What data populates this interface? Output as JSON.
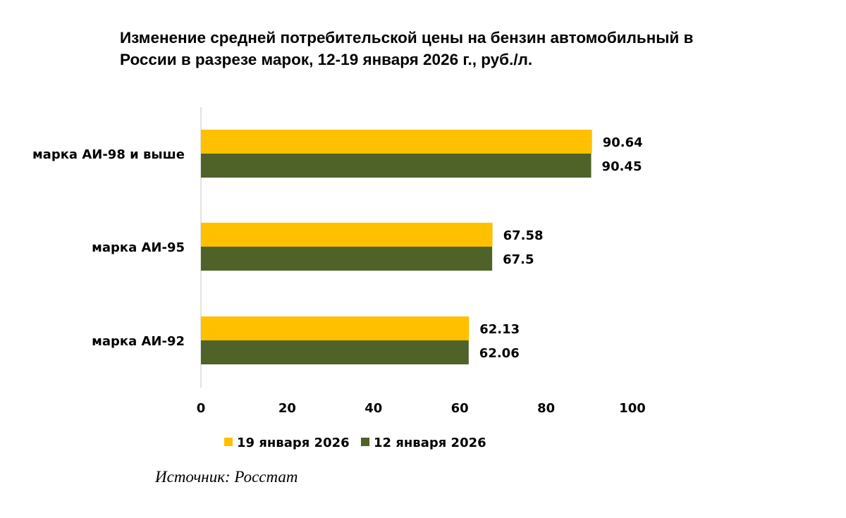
{
  "chart_data": {
    "type": "bar",
    "orientation": "horizontal",
    "title_lines": [
      "Изменение средней потребительской цены на бензин автомобильный в",
      "России в разрезе марок, 12-19 января 2026 г., руб./л."
    ],
    "categories": [
      "марка АИ-98 и выше",
      "марка АИ-95",
      "марка АИ-92"
    ],
    "series": [
      {
        "name": "19 января 2026",
        "color": "#FFC000",
        "values": [
          90.64,
          67.58,
          62.13
        ],
        "labels": [
          "90.64",
          "67.58",
          "62.13"
        ]
      },
      {
        "name": "12 января 2026",
        "color": "#4F6228",
        "values": [
          90.45,
          67.5,
          62.06
        ],
        "labels": [
          "90.45",
          "67.5",
          "62.06"
        ]
      }
    ],
    "xlim": [
      0,
      100
    ],
    "xticks": [
      0,
      20,
      40,
      60,
      80,
      100
    ],
    "xtick_labels": [
      "0",
      "20",
      "40",
      "60",
      "80",
      "100"
    ],
    "grid": false,
    "legend_position": "bottom"
  },
  "source": "Источник: Росстат"
}
